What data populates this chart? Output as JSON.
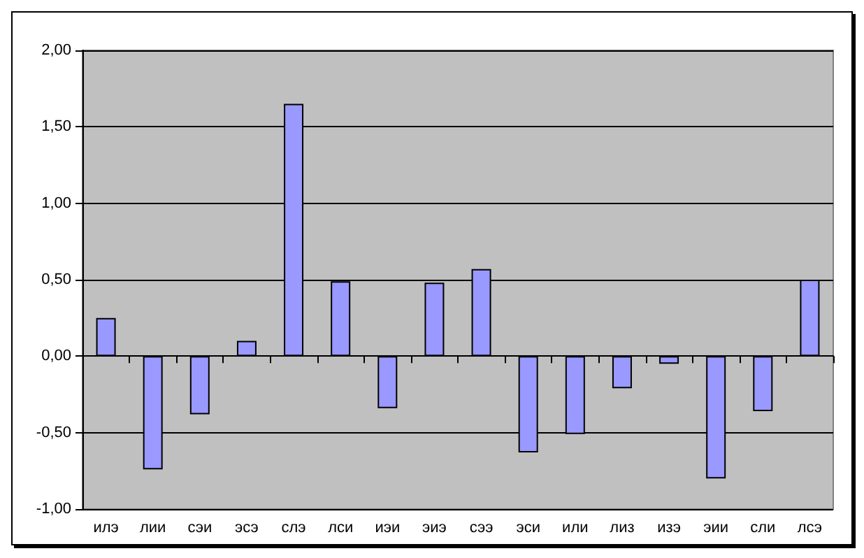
{
  "chart_data": {
    "type": "bar",
    "categories": [
      "илэ",
      "лии",
      "сэи",
      "эсэ",
      "слэ",
      "лси",
      "иэи",
      "эиэ",
      "сээ",
      "эси",
      "или",
      "лиз",
      "изэ",
      "эии",
      "сли",
      "лсэ"
    ],
    "values": [
      0.25,
      -0.74,
      -0.38,
      0.1,
      1.65,
      0.49,
      -0.34,
      0.48,
      0.57,
      -0.63,
      -0.51,
      -0.21,
      -0.05,
      -0.8,
      -0.36,
      0.5
    ],
    "color": "#9999ff",
    "ylim": [
      -1,
      2
    ],
    "yticks": [
      {
        "value": -1,
        "label": "-1,00"
      },
      {
        "value": -0.5,
        "label": "-0,50"
      },
      {
        "value": 0,
        "label": "0,00"
      },
      {
        "value": 0.5,
        "label": "0,50"
      },
      {
        "value": 1,
        "label": "1,00"
      },
      {
        "value": 1.5,
        "label": "1,50"
      },
      {
        "value": 2,
        "label": "2,00"
      }
    ],
    "grid": "y"
  }
}
